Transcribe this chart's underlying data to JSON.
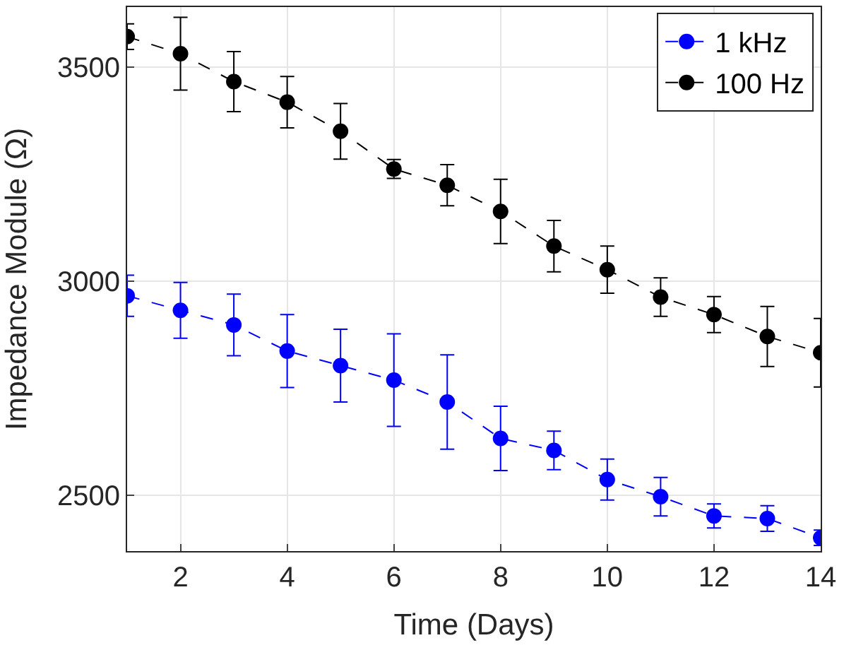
{
  "chart_data": {
    "type": "line",
    "xlabel": "Time (Days)",
    "ylabel": "Impedance Module (Ω)",
    "x": [
      1,
      2,
      3,
      4,
      5,
      6,
      7,
      8,
      9,
      10,
      11,
      12,
      13,
      14
    ],
    "series": [
      {
        "name": "1 kHz",
        "color": "#0000ff",
        "values": [
          2966,
          2932,
          2898,
          2837,
          2803,
          2769,
          2718,
          2633,
          2605,
          2537,
          2497,
          2452,
          2446,
          2401
        ],
        "errors": [
          48,
          65,
          72,
          85,
          85,
          108,
          110,
          75,
          45,
          48,
          45,
          28,
          30,
          18
        ]
      },
      {
        "name": "100 Hz",
        "color": "#000000",
        "values": [
          3571,
          3531,
          3466,
          3418,
          3350,
          3262,
          3224,
          3163,
          3082,
          3027,
          2963,
          2922,
          2871,
          2833
        ],
        "errors": [
          30,
          85,
          70,
          60,
          65,
          22,
          48,
          75,
          60,
          55,
          45,
          42,
          70,
          80
        ]
      }
    ],
    "xlim": [
      1,
      14
    ],
    "xticks": [
      2,
      4,
      6,
      8,
      10,
      12,
      14
    ],
    "ylim": [
      2370,
      3640
    ],
    "yticks": [
      2500,
      3000,
      3500
    ],
    "grid": true,
    "legend": "top right",
    "marker": "circle",
    "line_style": "dashed"
  }
}
